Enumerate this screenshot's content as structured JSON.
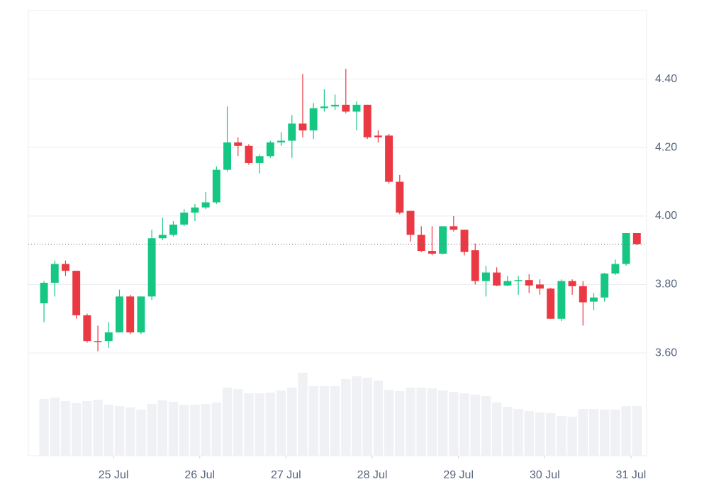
{
  "chart_data": {
    "type": "candlestick",
    "open": [
      3.745,
      3.805,
      3.86,
      3.84,
      3.71,
      3.635,
      3.635,
      3.66,
      3.765,
      3.66,
      3.765,
      3.935,
      3.945,
      3.975,
      4.01,
      4.025,
      4.04,
      4.135,
      4.215,
      4.205,
      4.155,
      4.175,
      4.215,
      4.22,
      4.27,
      4.25,
      4.315,
      4.32,
      4.325,
      4.305,
      4.325,
      4.235,
      4.235,
      4.1,
      4.015,
      3.945,
      3.898,
      3.89,
      3.97,
      3.96,
      3.9,
      3.81,
      3.835,
      3.797,
      3.81,
      3.813,
      3.8,
      3.788,
      3.7,
      3.81,
      3.795,
      3.75,
      3.762,
      3.832,
      3.86,
      3.95
    ],
    "high": [
      3.81,
      3.87,
      3.87,
      3.84,
      3.715,
      3.68,
      3.69,
      3.785,
      3.77,
      3.765,
      3.96,
      3.995,
      3.985,
      4.02,
      4.035,
      4.07,
      4.145,
      4.32,
      4.23,
      4.21,
      4.18,
      4.22,
      4.245,
      4.295,
      4.415,
      4.33,
      4.37,
      4.355,
      4.43,
      4.335,
      4.325,
      4.25,
      4.24,
      4.12,
      4.015,
      3.97,
      3.97,
      3.97,
      4.0,
      3.96,
      3.92,
      3.855,
      3.85,
      3.825,
      3.825,
      3.83,
      3.815,
      3.79,
      3.815,
      3.815,
      3.81,
      3.775,
      3.834,
      3.873,
      3.95,
      3.95
    ],
    "low": [
      3.69,
      3.765,
      3.825,
      3.7,
      3.63,
      3.605,
      3.615,
      3.66,
      3.655,
      3.655,
      3.755,
      3.93,
      3.94,
      3.97,
      3.985,
      4.02,
      4.035,
      4.13,
      4.175,
      4.15,
      4.125,
      4.17,
      4.205,
      4.17,
      4.23,
      4.225,
      4.305,
      4.31,
      4.3,
      4.25,
      4.225,
      4.215,
      4.095,
      4.005,
      3.925,
      3.895,
      3.885,
      3.888,
      3.955,
      3.885,
      3.8,
      3.765,
      3.795,
      3.795,
      3.77,
      3.775,
      3.77,
      3.7,
      3.693,
      3.77,
      3.68,
      3.725,
      3.75,
      3.828,
      3.855,
      3.915
    ],
    "close": [
      3.805,
      3.86,
      3.84,
      3.71,
      3.635,
      3.633,
      3.66,
      3.765,
      3.66,
      3.765,
      3.935,
      3.945,
      3.975,
      4.01,
      4.025,
      4.04,
      4.135,
      4.215,
      4.205,
      4.155,
      4.175,
      4.215,
      4.22,
      4.27,
      4.25,
      4.315,
      4.32,
      4.325,
      4.305,
      4.325,
      4.23,
      4.23,
      4.1,
      4.01,
      3.945,
      3.898,
      3.89,
      3.97,
      3.96,
      3.895,
      3.81,
      3.835,
      3.797,
      3.81,
      3.813,
      3.797,
      3.788,
      3.7,
      3.81,
      3.795,
      3.748,
      3.762,
      3.832,
      3.86,
      3.95,
      3.918
    ],
    "volume": [
      80,
      82,
      77,
      74,
      77,
      79,
      72,
      70,
      68,
      65,
      73,
      78,
      76,
      72,
      72,
      73,
      75,
      96,
      94,
      88,
      88,
      89,
      92,
      96,
      117,
      98,
      98,
      98,
      108,
      112,
      110,
      106,
      93,
      91,
      96,
      96,
      95,
      92,
      90,
      88,
      86,
      84,
      75,
      69,
      66,
      63,
      61,
      60,
      56,
      55,
      66,
      66,
      65,
      65,
      70,
      70
    ],
    "up_color": "#16c784",
    "down_color": "#ea3943",
    "volume_color": "#eff1f4",
    "ylim": [
      3.3,
      4.6
    ],
    "yticks": [
      {
        "value": 3.6,
        "label": "3.60"
      },
      {
        "value": 3.8,
        "label": "3.80"
      },
      {
        "value": 4.0,
        "label": "4.00"
      },
      {
        "value": 4.2,
        "label": "4.20"
      },
      {
        "value": 4.4,
        "label": "4.40"
      }
    ],
    "xlim": [
      -1.45,
      55.9
    ],
    "xticks": [
      {
        "value": 6.45,
        "label": "25 Jul"
      },
      {
        "value": 14.45,
        "label": "26 Jul"
      },
      {
        "value": 22.45,
        "label": "27 Jul"
      },
      {
        "value": 30.45,
        "label": "28 Jul"
      },
      {
        "value": 38.45,
        "label": "29 Jul"
      },
      {
        "value": 46.45,
        "label": "30 Jul"
      },
      {
        "value": 54.45,
        "label": "31 Jul"
      }
    ],
    "volume_lim": [
      0,
      120
    ],
    "grid": true,
    "last_price_line": true
  }
}
